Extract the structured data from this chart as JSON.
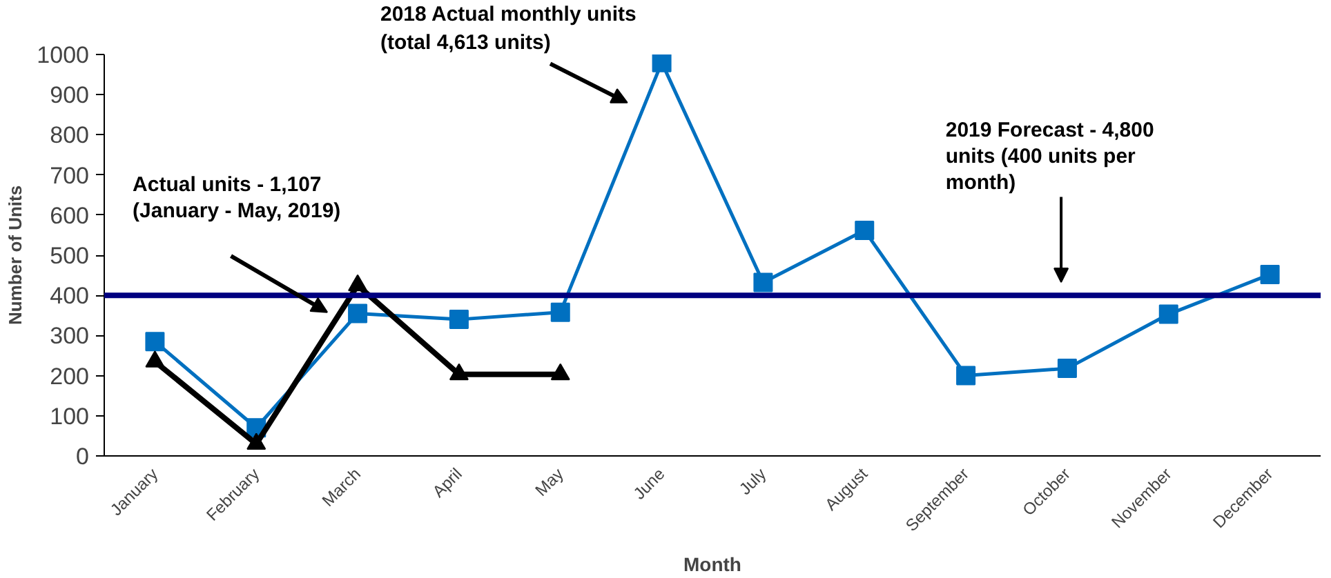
{
  "chart_data": {
    "type": "line",
    "xlabel": "Month",
    "ylabel": "Number of Units",
    "categories": [
      "January",
      "February",
      "March",
      "April",
      "May",
      "June",
      "July",
      "August",
      "September",
      "October",
      "November",
      "December"
    ],
    "ylim": [
      0,
      1000
    ],
    "yticks": [
      0,
      100,
      200,
      300,
      400,
      500,
      600,
      700,
      800,
      900,
      1000
    ],
    "grid": false,
    "series": [
      {
        "color": "#0070c0",
        "marker": "square",
        "values": [
          285,
          70,
          355,
          340,
          358,
          980,
          432,
          562,
          200,
          218,
          353,
          452
        ]
      },
      {
        "color": "#000000",
        "marker": "triangle",
        "values": [
          235,
          30,
          425,
          203,
          203,
          null,
          null,
          null,
          null,
          null,
          null,
          null
        ]
      }
    ],
    "ref_lines": [
      {
        "axis": "y",
        "value": 400,
        "label": "2019 Forecast - 4,800 units (400 units per month)",
        "color": "#000080",
        "line_style": "solid"
      }
    ],
    "annotations": [
      "2018 Actual monthly units (total 4,613 units)",
      "Actual units - 1,107 (January - May, 2019)"
    ]
  }
}
